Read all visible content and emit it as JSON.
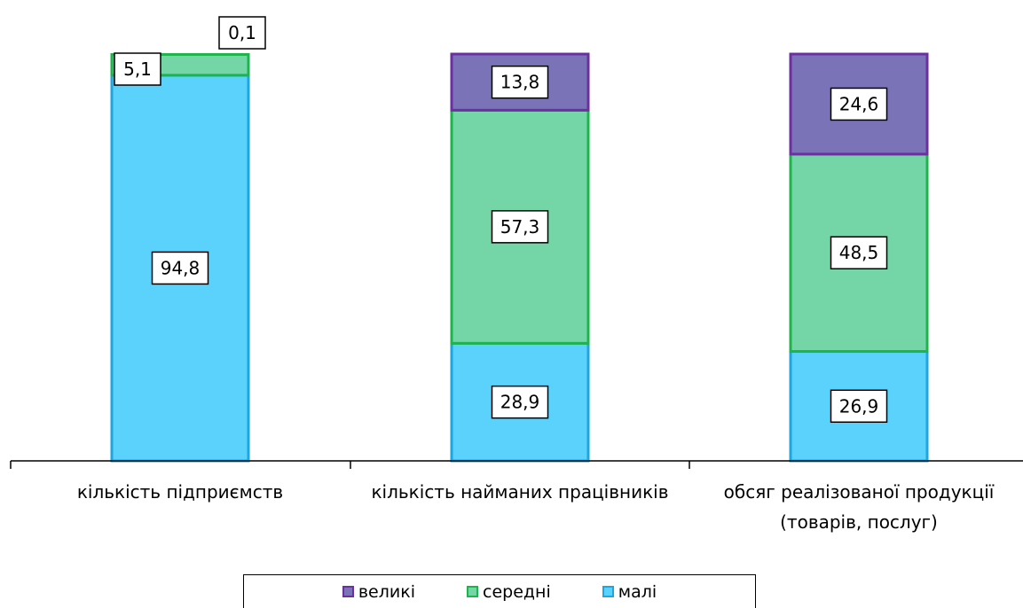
{
  "chart_data": {
    "type": "bar",
    "stacked": true,
    "categories": [
      [
        "кількість підприємств"
      ],
      [
        "кількість найманих працівників"
      ],
      [
        "обсяг реалізованої продукції",
        "(товарів, послуг)"
      ]
    ],
    "series": [
      {
        "name": "малі",
        "values": [
          94.8,
          28.9,
          26.9
        ],
        "labels": [
          "94,8",
          "28,9",
          "26,9"
        ],
        "fill": "#5bd2fc",
        "stroke": "#1ea6e0"
      },
      {
        "name": "середні",
        "values": [
          5.1,
          57.3,
          48.5
        ],
        "labels": [
          "5,1",
          "57,3",
          "48,5"
        ],
        "fill": "#74d6a6",
        "stroke": "#1db44b"
      },
      {
        "name": "великі",
        "values": [
          0.1,
          13.8,
          24.6
        ],
        "labels": [
          "0,1",
          "13,8",
          "24,6"
        ],
        "fill": "#7b73b8",
        "stroke": "#6b2fa0"
      }
    ],
    "ylim": [
      0,
      100
    ],
    "legend": {
      "position": "bottom",
      "order": [
        "великі",
        "середні",
        "малі"
      ]
    }
  }
}
